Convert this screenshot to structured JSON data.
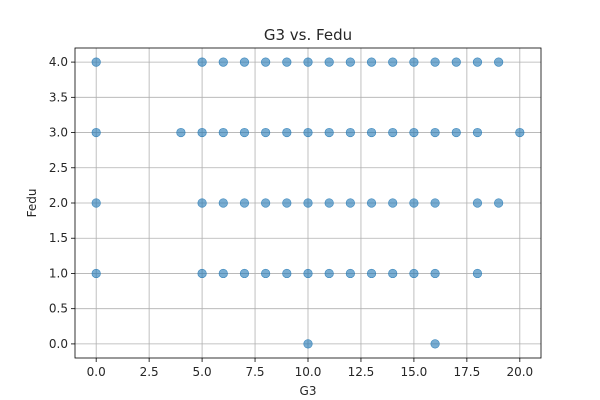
{
  "chart_data": {
    "type": "scatter",
    "title": "G3 vs. Fedu",
    "xlabel": "G3",
    "ylabel": "Fedu",
    "xlim": [
      -1,
      21
    ],
    "ylim": [
      -0.2,
      4.2
    ],
    "xticks": [
      0.0,
      2.5,
      5.0,
      7.5,
      10.0,
      12.5,
      15.0,
      17.5,
      20.0
    ],
    "xtick_labels": [
      "0.0",
      "2.5",
      "5.0",
      "7.5",
      "10.0",
      "12.5",
      "15.0",
      "17.5",
      "20.0"
    ],
    "yticks": [
      0.0,
      0.5,
      1.0,
      1.5,
      2.0,
      2.5,
      3.0,
      3.5,
      4.0
    ],
    "ytick_labels": [
      "0.0",
      "0.5",
      "1.0",
      "1.5",
      "2.0",
      "2.5",
      "3.0",
      "3.5",
      "4.0"
    ],
    "grid": true,
    "marker_color": "#1f77b4",
    "marker_alpha": 0.6,
    "points": [
      [
        0,
        4
      ],
      [
        5,
        4
      ],
      [
        6,
        4
      ],
      [
        7,
        4
      ],
      [
        8,
        4
      ],
      [
        9,
        4
      ],
      [
        10,
        4
      ],
      [
        11,
        4
      ],
      [
        12,
        4
      ],
      [
        13,
        4
      ],
      [
        14,
        4
      ],
      [
        15,
        4
      ],
      [
        16,
        4
      ],
      [
        17,
        4
      ],
      [
        18,
        4
      ],
      [
        19,
        4
      ],
      [
        0,
        3
      ],
      [
        4,
        3
      ],
      [
        5,
        3
      ],
      [
        6,
        3
      ],
      [
        7,
        3
      ],
      [
        8,
        3
      ],
      [
        9,
        3
      ],
      [
        10,
        3
      ],
      [
        11,
        3
      ],
      [
        12,
        3
      ],
      [
        13,
        3
      ],
      [
        14,
        3
      ],
      [
        15,
        3
      ],
      [
        16,
        3
      ],
      [
        17,
        3
      ],
      [
        18,
        3
      ],
      [
        20,
        3
      ],
      [
        0,
        2
      ],
      [
        5,
        2
      ],
      [
        6,
        2
      ],
      [
        7,
        2
      ],
      [
        8,
        2
      ],
      [
        9,
        2
      ],
      [
        10,
        2
      ],
      [
        11,
        2
      ],
      [
        12,
        2
      ],
      [
        13,
        2
      ],
      [
        14,
        2
      ],
      [
        15,
        2
      ],
      [
        16,
        2
      ],
      [
        18,
        2
      ],
      [
        19,
        2
      ],
      [
        0,
        1
      ],
      [
        5,
        1
      ],
      [
        6,
        1
      ],
      [
        7,
        1
      ],
      [
        8,
        1
      ],
      [
        9,
        1
      ],
      [
        10,
        1
      ],
      [
        11,
        1
      ],
      [
        12,
        1
      ],
      [
        13,
        1
      ],
      [
        14,
        1
      ],
      [
        15,
        1
      ],
      [
        16,
        1
      ],
      [
        18,
        1
      ],
      [
        10,
        0
      ],
      [
        16,
        0
      ]
    ]
  }
}
